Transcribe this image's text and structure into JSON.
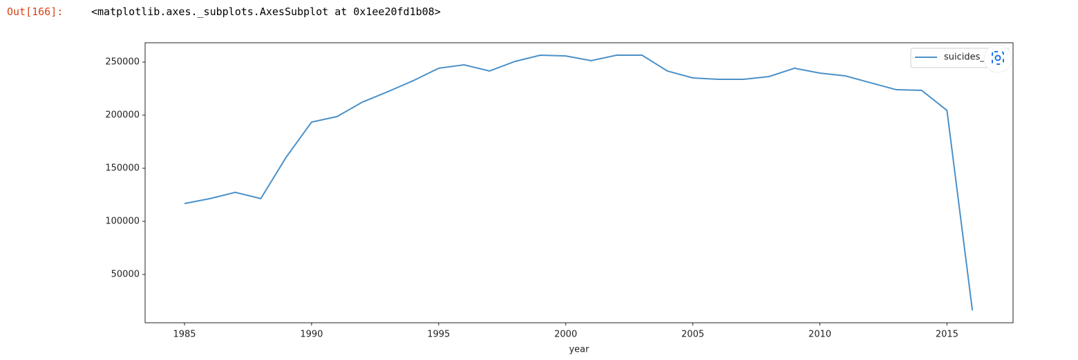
{
  "output_prompt": "Out[166]:",
  "output_text": "<matplotlib.axes._subplots.AxesSubplot at 0x1ee20fd1b08>",
  "chart_data": {
    "type": "line",
    "x_label": "year",
    "x": [
      1985,
      1986,
      1987,
      1988,
      1989,
      1990,
      1991,
      1992,
      1993,
      1994,
      1995,
      1996,
      1997,
      1998,
      1999,
      2000,
      2001,
      2002,
      2003,
      2004,
      2005,
      2006,
      2007,
      2008,
      2009,
      2010,
      2011,
      2012,
      2013,
      2014,
      2015,
      2016
    ],
    "series": [
      {
        "name": "suicides_no",
        "color": "#4a90c8",
        "values": [
          116800,
          121400,
          127300,
          121400,
          160400,
          193500,
          198700,
          212300,
          222100,
          232500,
          244200,
          247400,
          241600,
          250600,
          256500,
          255800,
          251300,
          256500,
          256500,
          241600,
          235100,
          233800,
          233800,
          236400,
          244200,
          239600,
          237000,
          230500,
          224000,
          223400,
          204500,
          16200
        ]
      }
    ],
    "xlim": [
      1983.45,
      2017.6
    ],
    "xticks": [
      1985,
      1990,
      1995,
      2000,
      2005,
      2010,
      2015
    ],
    "ylim": [
      4500,
      268200
    ],
    "yticks": [
      50000,
      100000,
      150000,
      200000,
      250000
    ],
    "legend": "upper right",
    "grid": false
  }
}
